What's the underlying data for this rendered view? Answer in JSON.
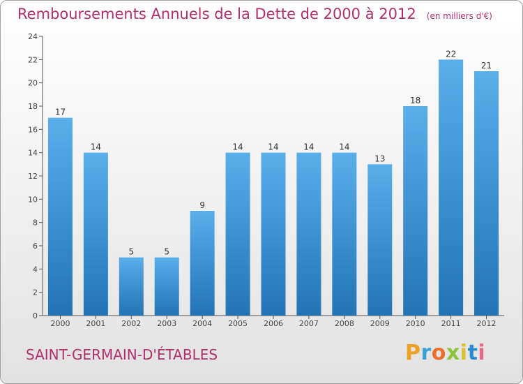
{
  "title": "Remboursements Annuels de la Dette de 2000 à 2012",
  "unit": "(en milliers d'€)",
  "commune": "SAINT-GERMAIN-D'ÉTABLES",
  "brand": {
    "letters": [
      "P",
      "r",
      "o",
      "x",
      "i",
      "t",
      "i"
    ]
  },
  "colors": {
    "title": "#b0306e",
    "bar_top": "#5aaeea",
    "bar_bottom": "#2274b4",
    "axis": "#555555",
    "grid": "#d0d0d0"
  },
  "chart_data": {
    "type": "bar",
    "categories": [
      "2000",
      "2001",
      "2002",
      "2003",
      "2004",
      "2005",
      "2006",
      "2007",
      "2008",
      "2009",
      "2010",
      "2011",
      "2012"
    ],
    "values": [
      17,
      14,
      5,
      5,
      9,
      14,
      14,
      14,
      14,
      13,
      18,
      22,
      21
    ],
    "title": "Remboursements Annuels de la Dette de 2000 à 2012",
    "ylim": [
      0,
      24
    ],
    "yticks": [
      0,
      2,
      4,
      6,
      8,
      10,
      12,
      14,
      16,
      18,
      20,
      22,
      24
    ],
    "grid": false,
    "legend": "none"
  }
}
